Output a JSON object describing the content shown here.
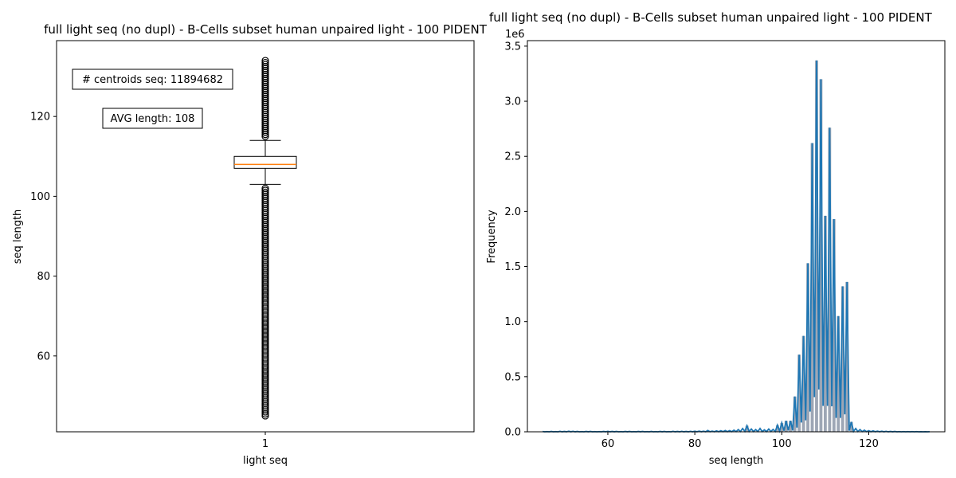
{
  "chart_data": [
    {
      "type": "box",
      "title": "full light seq (no dupl) - B-Cells subset human unpaired light - 100 PIDENT",
      "xlabel": "light seq",
      "ylabel": "seq length",
      "categories": [
        "1"
      ],
      "ylim": [
        41,
        139
      ],
      "yticks": [
        60,
        80,
        100,
        120
      ],
      "box": {
        "whisker_low": 103,
        "q1": 107,
        "median": 108,
        "q3": 110,
        "whisker_high": 114,
        "outliers_high_range": [
          115,
          134
        ],
        "outliers_low_range": [
          45,
          102
        ]
      },
      "annotations": [
        "# centroids seq: 11894682",
        "AVG length: 108"
      ],
      "colors": {
        "box": "#000000",
        "median": "#ff7f0e"
      }
    },
    {
      "type": "histogram+line",
      "title": "full light seq (no dupl) - B-Cells subset human unpaired light - 100 PIDENT",
      "xlabel": "seq length",
      "ylabel": "Frequency",
      "y_offset_label": "1e6",
      "xlim": [
        41.5,
        137.5
      ],
      "ylim": [
        0,
        3.55
      ],
      "xticks": [
        60,
        80,
        100,
        120
      ],
      "yticks": [
        0.0,
        0.5,
        1.0,
        1.5,
        2.0,
        2.5,
        3.0,
        3.5
      ],
      "ytick_labels": [
        "0.0",
        "0.5",
        "1.0",
        "1.5",
        "2.0",
        "2.5",
        "3.0",
        "3.5"
      ],
      "x": [
        45,
        46,
        47,
        48,
        49,
        50,
        51,
        52,
        53,
        54,
        55,
        56,
        57,
        58,
        59,
        60,
        61,
        62,
        63,
        64,
        65,
        66,
        67,
        68,
        69,
        70,
        71,
        72,
        73,
        74,
        75,
        76,
        77,
        78,
        79,
        80,
        81,
        82,
        83,
        84,
        85,
        86,
        87,
        88,
        89,
        90,
        91,
        92,
        93,
        94,
        95,
        96,
        97,
        98,
        99,
        100,
        101,
        102,
        103,
        104,
        105,
        106,
        107,
        108,
        109,
        110,
        111,
        112,
        113,
        114,
        115,
        116,
        117,
        118,
        119,
        120,
        121,
        122,
        123,
        124,
        125,
        126,
        127,
        128,
        129,
        130,
        131,
        132,
        133,
        134
      ],
      "values": [
        0.003,
        0.002,
        0.003,
        0.002,
        0.004,
        0.003,
        0.005,
        0.004,
        0.003,
        0.002,
        0.003,
        0.003,
        0.002,
        0.002,
        0.003,
        0.004,
        0.003,
        0.003,
        0.002,
        0.003,
        0.003,
        0.002,
        0.003,
        0.003,
        0.002,
        0.003,
        0.002,
        0.003,
        0.003,
        0.002,
        0.004,
        0.003,
        0.004,
        0.003,
        0.004,
        0.005,
        0.006,
        0.005,
        0.012,
        0.006,
        0.008,
        0.01,
        0.012,
        0.011,
        0.015,
        0.02,
        0.03,
        0.055,
        0.025,
        0.02,
        0.03,
        0.018,
        0.025,
        0.022,
        0.06,
        0.08,
        0.1,
        0.1,
        0.32,
        0.7,
        0.87,
        1.53,
        2.62,
        3.37,
        3.2,
        1.96,
        2.76,
        1.93,
        1.05,
        1.32,
        1.36,
        0.09,
        0.03,
        0.02,
        0.015,
        0.01,
        0.008,
        0.006,
        0.005,
        0.004,
        0.003,
        0.003,
        0.002,
        0.002,
        0.002,
        0.002,
        0.002,
        0.001,
        0.001,
        0.001
      ],
      "colors": {
        "line": "#1f77b4",
        "bars": "#8c96a8"
      }
    }
  ]
}
